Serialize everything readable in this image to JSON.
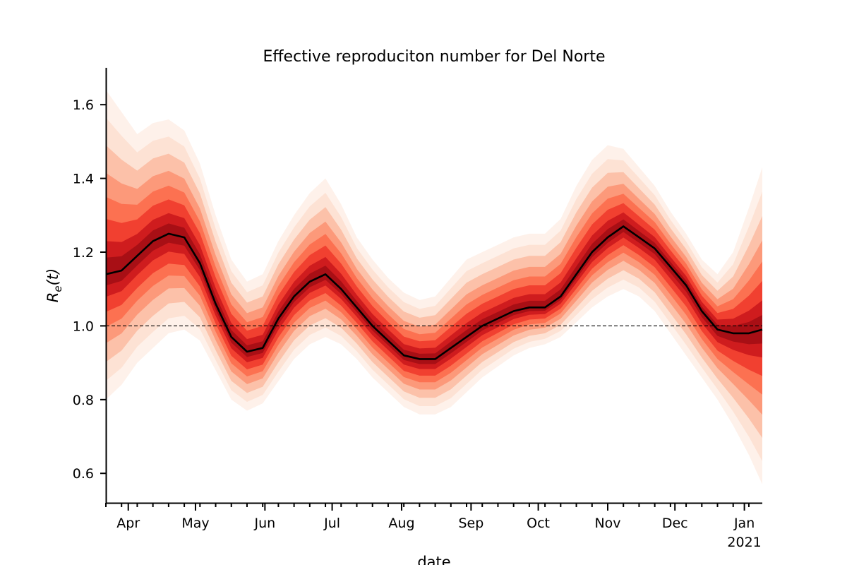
{
  "chart_data": {
    "type": "line",
    "title": "Effective reproduciton number for Del Norte",
    "xlabel": "date",
    "ylabel": "R",
    "ylabel_sub": "e",
    "ylabel_arg": "(t)",
    "x_start": "2020-03-22",
    "x_end": "2021-01-09",
    "ylim": [
      0.52,
      1.7
    ],
    "yticks": [
      0.6,
      0.8,
      1.0,
      1.2,
      1.4,
      1.6
    ],
    "ytick_labels": [
      "0.6",
      "0.8",
      "1.0",
      "1.2",
      "1.4",
      "1.6"
    ],
    "xticks": [
      {
        "date": "2020-04-01",
        "label": "Apr",
        "year": ""
      },
      {
        "date": "2020-05-01",
        "label": "May",
        "year": ""
      },
      {
        "date": "2020-06-01",
        "label": "Jun",
        "year": ""
      },
      {
        "date": "2020-07-01",
        "label": "Jul",
        "year": ""
      },
      {
        "date": "2020-08-01",
        "label": "Aug",
        "year": ""
      },
      {
        "date": "2020-09-01",
        "label": "Sep",
        "year": ""
      },
      {
        "date": "2020-10-01",
        "label": "Oct",
        "year": ""
      },
      {
        "date": "2020-11-01",
        "label": "Nov",
        "year": ""
      },
      {
        "date": "2020-12-01",
        "label": "Dec",
        "year": ""
      },
      {
        "date": "2021-01-01",
        "label": "Jan",
        "year": "2021"
      }
    ],
    "reference_line": 1.0,
    "colors": {
      "median": "#000000",
      "band_outer": "#fde0d2",
      "band_mid": "#fb6a4a",
      "band_inner": "#a50f15",
      "reference": "#000000"
    },
    "series": [
      {
        "dates": [
          "2020-03-22",
          "2020-03-29",
          "2020-04-05",
          "2020-04-12",
          "2020-04-19",
          "2020-04-26",
          "2020-05-03",
          "2020-05-10",
          "2020-05-17",
          "2020-05-24",
          "2020-05-31",
          "2020-06-07",
          "2020-06-14",
          "2020-06-21",
          "2020-06-28",
          "2020-07-05",
          "2020-07-12",
          "2020-07-19",
          "2020-07-26",
          "2020-08-02",
          "2020-08-09",
          "2020-08-16",
          "2020-08-23",
          "2020-08-30",
          "2020-09-06",
          "2020-09-13",
          "2020-09-20",
          "2020-09-27",
          "2020-10-04",
          "2020-10-11",
          "2020-10-18",
          "2020-10-25",
          "2020-11-01",
          "2020-11-08",
          "2020-11-15",
          "2020-11-22",
          "2020-11-29",
          "2020-12-06",
          "2020-12-13",
          "2020-12-20",
          "2020-12-27",
          "2021-01-03",
          "2021-01-09"
        ],
        "median": [
          1.14,
          1.15,
          1.19,
          1.23,
          1.25,
          1.24,
          1.17,
          1.06,
          0.97,
          0.93,
          0.94,
          1.02,
          1.08,
          1.12,
          1.14,
          1.1,
          1.05,
          1.0,
          0.96,
          0.92,
          0.91,
          0.91,
          0.94,
          0.97,
          1.0,
          1.02,
          1.04,
          1.05,
          1.05,
          1.08,
          1.14,
          1.2,
          1.24,
          1.27,
          1.24,
          1.21,
          1.16,
          1.11,
          1.04,
          0.99,
          0.98,
          0.98,
          0.99
        ],
        "lower": [
          0.8,
          0.84,
          0.9,
          0.94,
          0.98,
          0.99,
          0.96,
          0.88,
          0.8,
          0.77,
          0.79,
          0.85,
          0.91,
          0.95,
          0.97,
          0.95,
          0.91,
          0.86,
          0.82,
          0.78,
          0.76,
          0.76,
          0.78,
          0.82,
          0.86,
          0.89,
          0.92,
          0.94,
          0.95,
          0.97,
          1.01,
          1.05,
          1.08,
          1.1,
          1.08,
          1.04,
          0.98,
          0.92,
          0.86,
          0.8,
          0.73,
          0.65,
          0.57
        ],
        "upper": [
          1.64,
          1.58,
          1.52,
          1.55,
          1.56,
          1.53,
          1.44,
          1.3,
          1.18,
          1.12,
          1.14,
          1.23,
          1.3,
          1.36,
          1.4,
          1.33,
          1.24,
          1.18,
          1.13,
          1.09,
          1.07,
          1.08,
          1.13,
          1.18,
          1.2,
          1.22,
          1.24,
          1.25,
          1.25,
          1.29,
          1.38,
          1.45,
          1.49,
          1.48,
          1.43,
          1.38,
          1.31,
          1.25,
          1.18,
          1.14,
          1.2,
          1.32,
          1.43
        ]
      }
    ]
  }
}
